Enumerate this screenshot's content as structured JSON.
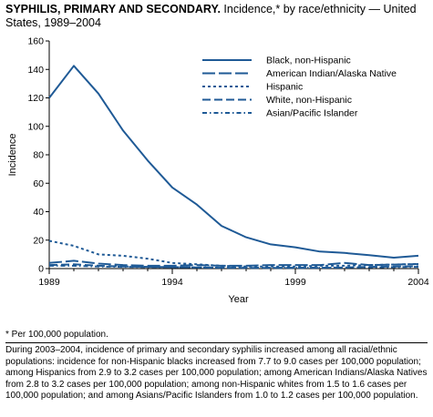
{
  "title": {
    "bold": "SYPHILIS, PRIMARY AND SECONDARY.",
    "rest": " Incidence,* by race/ethnicity — United States, 1989–2004"
  },
  "footnote": "* Per 100,000 population.",
  "note": "During 2003–2004, incidence of primary and secondary syphilis increased among all racial/ethnic populations: incidence for non-Hispanic blacks increased from 7.7 to 9.0 cases per 100,000 population; among Hispanics from 2.9 to 3.2 cases per 100,000 population; among American Indians/Alaska Natives from 2.8 to 3.2 cases per 100,000 population; among non-Hispanic whites from 1.5 to 1.6 cases per 100,000 population; and among Asians/Pacific Islanders from 1.0 to 1.2 cases per 100,000 population.",
  "chart_data": {
    "type": "line",
    "title": "SYPHILIS, PRIMARY AND SECONDARY. Incidence,* by race/ethnicity — United States, 1989–2004",
    "xlabel": "Year",
    "ylabel": "Incidence",
    "xlim": [
      1989,
      2004
    ],
    "ylim": [
      0,
      160
    ],
    "xticks": [
      "1989",
      "1994",
      "1999",
      "2004"
    ],
    "xtick_values": [
      1989,
      1994,
      1999,
      2004
    ],
    "yticks": [
      "0",
      "20",
      "40",
      "60",
      "80",
      "100",
      "120",
      "140",
      "160"
    ],
    "ytick_values": [
      0,
      20,
      40,
      60,
      80,
      100,
      120,
      140,
      160
    ],
    "grid": false,
    "legend_position": "top-right",
    "line_color": "#1f5a96",
    "x": [
      1989,
      1990,
      1991,
      1992,
      1993,
      1994,
      1995,
      1996,
      1997,
      1998,
      1999,
      2000,
      2001,
      2002,
      2003,
      2004
    ],
    "series": [
      {
        "name": "Black, non-Hispanic",
        "dash": "solid",
        "values": [
          120,
          142.5,
          123,
          97,
          76,
          57,
          45,
          30,
          22,
          17,
          15,
          12,
          11,
          9.5,
          7.7,
          9.0
        ]
      },
      {
        "name": "American Indian/Alaska Native",
        "dash": "longdash",
        "values": [
          4,
          5.5,
          3.5,
          2.5,
          2,
          2,
          2.5,
          2,
          2,
          2.5,
          2.5,
          2.5,
          4,
          2.5,
          2.8,
          3.2
        ]
      },
      {
        "name": "Hispanic",
        "dash": "dot",
        "values": [
          19.5,
          16,
          10,
          9,
          7,
          4,
          3,
          2,
          1.5,
          1.5,
          1.5,
          2,
          2,
          2.5,
          2.9,
          3.2
        ]
      },
      {
        "name": "White, non-Hispanic",
        "dash": "dash",
        "values": [
          2.5,
          3,
          2,
          1.5,
          1.2,
          1,
          0.8,
          0.6,
          0.5,
          0.5,
          0.5,
          0.6,
          0.8,
          1.2,
          1.5,
          1.6
        ]
      },
      {
        "name": "Asian/Pacific Islander",
        "dash": "dashdot",
        "values": [
          2,
          2,
          1.5,
          1.2,
          1,
          1,
          0.9,
          0.8,
          0.7,
          0.6,
          0.6,
          0.6,
          0.7,
          0.9,
          1.0,
          1.2
        ]
      }
    ]
  }
}
